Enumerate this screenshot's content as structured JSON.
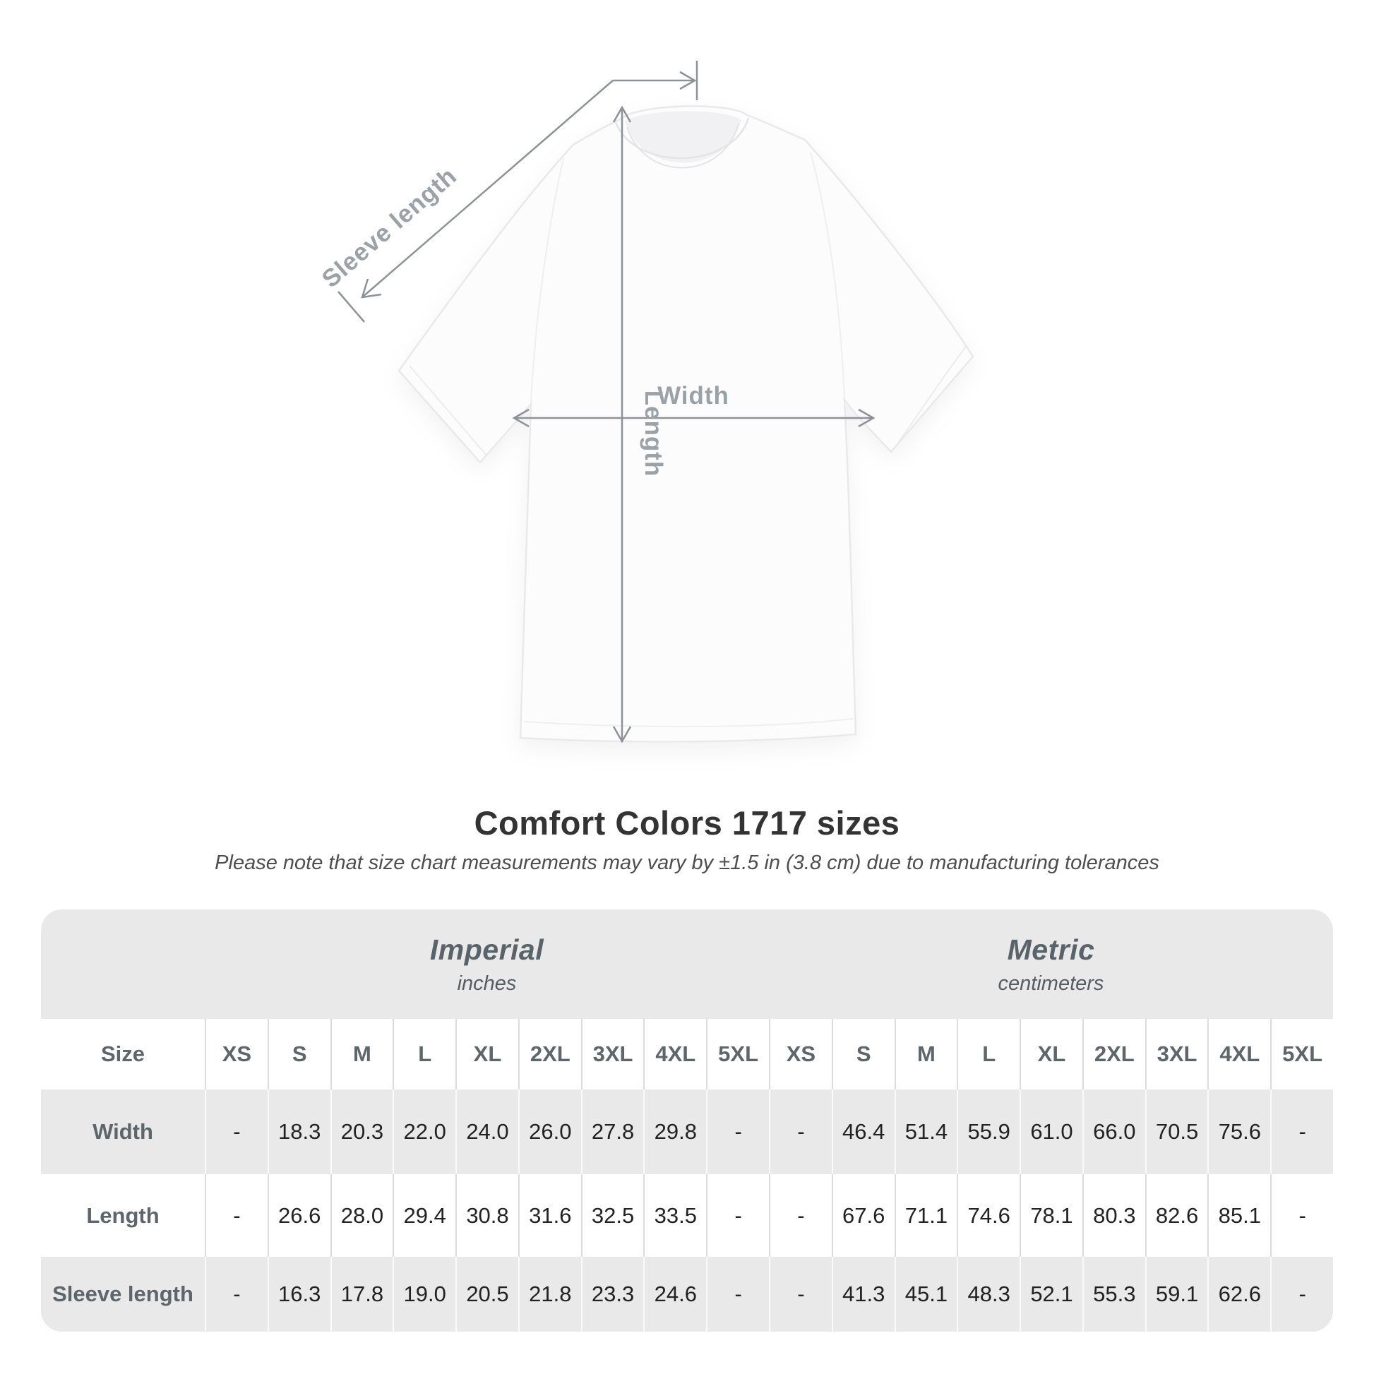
{
  "diagram": {
    "measure_labels": {
      "sleeve_length": "Sleeve length",
      "length": "Length",
      "width": "Width"
    }
  },
  "heading": {
    "title": "Comfort Colors 1717 sizes",
    "subtitle": "Please note that size chart measurements may vary by ±1.5 in (3.8 cm) due to manufacturing tolerances"
  },
  "table": {
    "unit_groups": [
      {
        "name": "Imperial",
        "unit": "inches"
      },
      {
        "name": "Metric",
        "unit": "centimeters"
      }
    ],
    "size_col_header": "Size",
    "size_headers": [
      "XS",
      "S",
      "M",
      "L",
      "XL",
      "2XL",
      "3XL",
      "4XL",
      "5XL"
    ],
    "rows": [
      {
        "label": "Width",
        "imperial": [
          "-",
          "18.3",
          "20.3",
          "22.0",
          "24.0",
          "26.0",
          "27.8",
          "29.8",
          "-"
        ],
        "metric": [
          "-",
          "46.4",
          "51.4",
          "55.9",
          "61.0",
          "66.0",
          "70.5",
          "75.6",
          "-"
        ]
      },
      {
        "label": "Length",
        "imperial": [
          "-",
          "26.6",
          "28.0",
          "29.4",
          "30.8",
          "31.6",
          "32.5",
          "33.5",
          "-"
        ],
        "metric": [
          "-",
          "67.6",
          "71.1",
          "74.6",
          "78.1",
          "80.3",
          "82.6",
          "85.1",
          "-"
        ]
      },
      {
        "label": "Sleeve length",
        "imperial": [
          "-",
          "16.3",
          "17.8",
          "19.0",
          "20.5",
          "21.8",
          "23.3",
          "24.6",
          "-"
        ],
        "metric": [
          "-",
          "41.3",
          "45.1",
          "48.3",
          "52.1",
          "55.3",
          "59.1",
          "62.6",
          "-"
        ]
      }
    ]
  },
  "colors": {
    "panel_bg": "#e9e9e9",
    "header_text": "#5c666b",
    "value_text": "#222222",
    "arrow_line": "#8c9297",
    "diagram_label": "#9ba2a7",
    "title_text": "#333333"
  }
}
